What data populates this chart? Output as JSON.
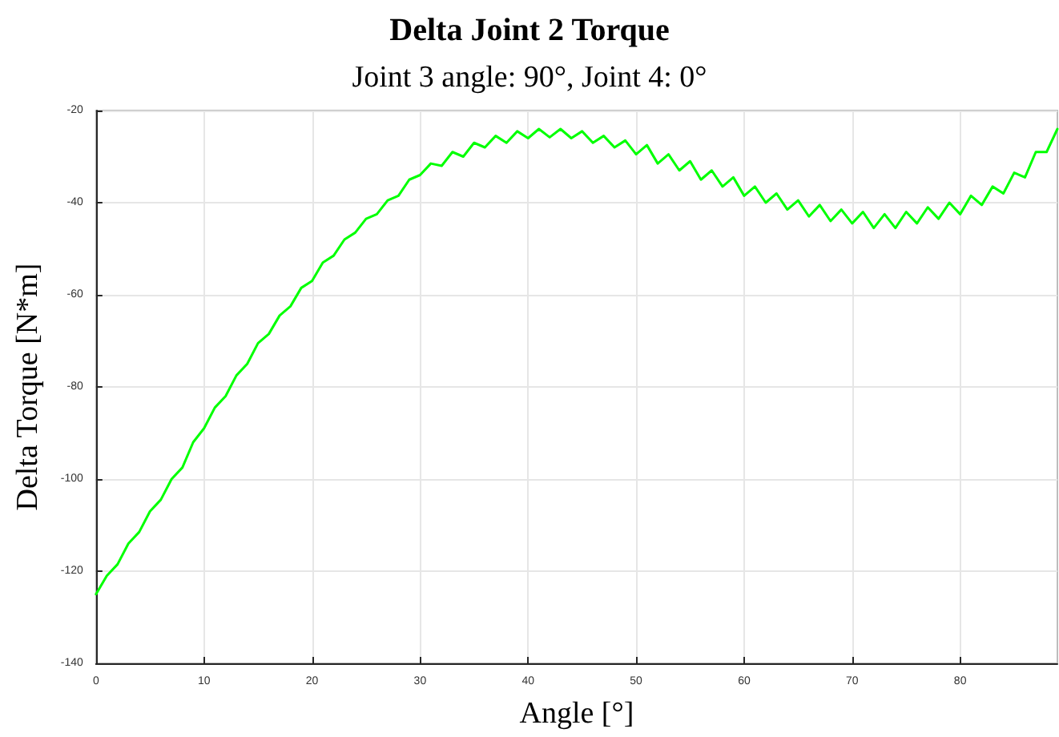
{
  "chart_data": {
    "type": "line",
    "title": "Delta Joint 2 Torque",
    "subtitle": "Joint 3 angle: 90°, Joint 4: 0°",
    "xlabel": "Angle [°]",
    "ylabel": "Delta Torque [N*m]",
    "x": [
      0,
      1,
      2,
      3,
      4,
      5,
      6,
      7,
      8,
      9,
      10,
      11,
      12,
      13,
      14,
      15,
      16,
      17,
      18,
      19,
      20,
      21,
      22,
      23,
      24,
      25,
      26,
      27,
      28,
      29,
      30,
      31,
      32,
      33,
      34,
      35,
      36,
      37,
      38,
      39,
      40,
      41,
      42,
      43,
      44,
      45,
      46,
      47,
      48,
      49,
      50,
      51,
      52,
      53,
      54,
      55,
      56,
      57,
      58,
      59,
      60,
      61,
      62,
      63,
      64,
      65,
      66,
      67,
      68,
      69,
      70,
      71,
      72,
      73,
      74,
      75,
      76,
      77,
      78,
      79,
      80,
      81,
      82,
      83,
      84,
      85,
      86,
      87,
      88,
      89
    ],
    "series": [
      {
        "color": "#00ff00",
        "values": [
          -125,
          -121,
          -118.5,
          -114,
          -111.5,
          -107,
          -104.5,
          -100,
          -97.5,
          -92,
          -89,
          -84.5,
          -82,
          -77.5,
          -75,
          -70.5,
          -68.5,
          -64.5,
          -62.5,
          -58.5,
          -57,
          -53,
          -51.5,
          -48,
          -46.5,
          -43.5,
          -42.5,
          -39.5,
          -38.5,
          -35,
          -34,
          -31.5,
          -32,
          -29,
          -30,
          -27,
          -28,
          -25.5,
          -27,
          -24.5,
          -26,
          -24,
          -25.8,
          -24,
          -26,
          -24.5,
          -27,
          -25.5,
          -28,
          -26.5,
          -29.5,
          -27.5,
          -31.5,
          -29.5,
          -33,
          -31,
          -35,
          -33,
          -36.5,
          -34.5,
          -38.5,
          -36.5,
          -40,
          -38,
          -41.5,
          -39.5,
          -43,
          -40.5,
          -44,
          -41.5,
          -44.5,
          -42,
          -45.5,
          -42.5,
          -45.5,
          -42,
          -44.5,
          -41,
          -43.5,
          -40,
          -42.5,
          -38.5,
          -40.5,
          -36.5,
          -38,
          -33.5,
          -34.5,
          -29,
          -29,
          -24
        ]
      }
    ],
    "xlim": [
      0,
      89
    ],
    "ylim": [
      -140,
      -20
    ],
    "xticks": [
      0,
      10,
      20,
      30,
      40,
      50,
      60,
      70,
      80
    ],
    "yticks": [
      -140,
      -120,
      -100,
      -80,
      -60,
      -40,
      -20
    ],
    "grid": true,
    "marker": "none",
    "line_style": "solid"
  }
}
